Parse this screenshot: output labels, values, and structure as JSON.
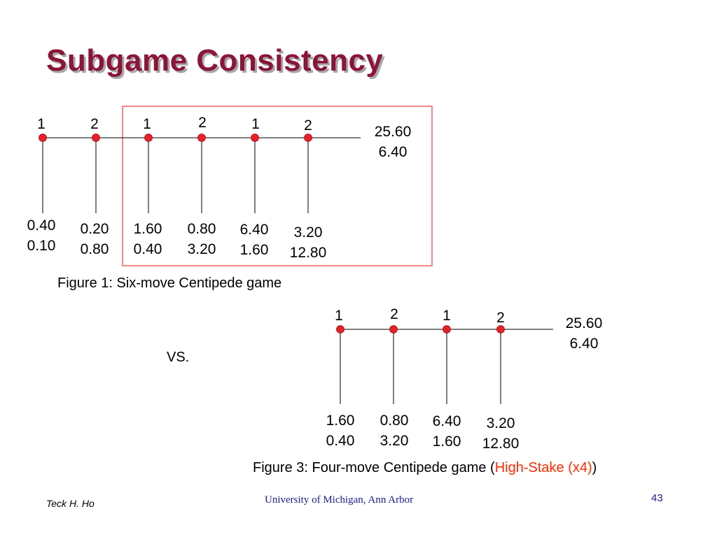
{
  "title": "Subgame Consistency",
  "figure1": {
    "caption": "Figure 1: Six-move Centipede game",
    "players": [
      "1",
      "2",
      "1",
      "2",
      "1",
      "2"
    ],
    "payoffs": [
      {
        "p1": "0.40",
        "p2": "0.10"
      },
      {
        "p1": "0.20",
        "p2": "0.80"
      },
      {
        "p1": "1.60",
        "p2": "0.40"
      },
      {
        "p1": "0.80",
        "p2": "3.20"
      },
      {
        "p1": "6.40",
        "p2": "1.60"
      },
      {
        "p1": "3.20",
        "p2": "12.80"
      }
    ],
    "terminal": {
      "p1": "25.60",
      "p2": "6.40"
    }
  },
  "vs_label": "VS.",
  "figure3": {
    "caption_prefix": "Figure 3: Four-move Centipede game (",
    "caption_highlight": "High-Stake (x4)",
    "caption_suffix": ")",
    "players": [
      "1",
      "2",
      "1",
      "2"
    ],
    "payoffs": [
      {
        "p1": "1.60",
        "p2": "0.40"
      },
      {
        "p1": "0.80",
        "p2": "3.20"
      },
      {
        "p1": "6.40",
        "p2": "1.60"
      },
      {
        "p1": "3.20",
        "p2": "12.80"
      }
    ],
    "terminal": {
      "p1": "25.60",
      "p2": "6.40"
    }
  },
  "footer": {
    "author": "Teck H. Ho",
    "institution": "University of Michigan, Ann Arbor",
    "page": "43"
  },
  "colors": {
    "title": "#8b1538",
    "node": "#e8202a",
    "highlight_box": "#f06060",
    "highlight_text": "#ff2a00",
    "footer_text": "#1a1a8c"
  }
}
